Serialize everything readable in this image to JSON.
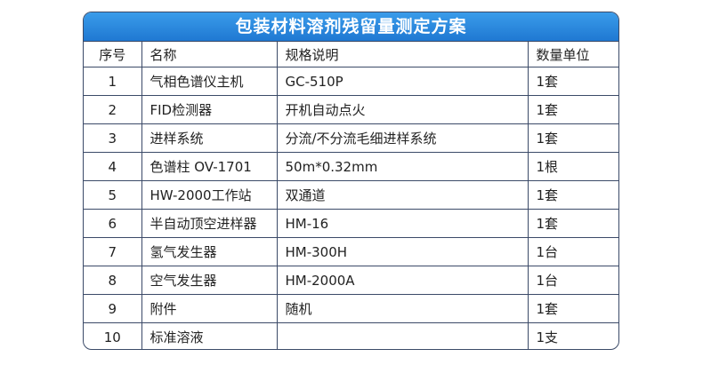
{
  "title": "包装材料溶剂残留量测定方案",
  "headers": [
    "序号",
    "名称",
    "规格说明",
    "数量单位"
  ],
  "rows": [
    [
      "1",
      "气相色谱仪主机",
      "GC-510P",
      "1套"
    ],
    [
      "2",
      "FID检测器",
      "开机自动点火",
      "1套"
    ],
    [
      "3",
      "进样系统",
      "分流/不分流毛细进样系统",
      "1套"
    ],
    [
      "4",
      "色谱柱 OV-1701",
      "50m*0.32mm",
      "1根"
    ],
    [
      "5",
      "HW-2000工作站",
      "双通道",
      "1套"
    ],
    [
      "6",
      "半自动顶空进样器",
      "HM-16",
      "1套"
    ],
    [
      "7",
      "氢气发生器",
      "HM-300H",
      "1台"
    ],
    [
      "8",
      "空气发生器",
      "HM-2000A",
      "1台"
    ],
    [
      "9",
      "附件",
      "随机",
      "1套"
    ],
    [
      "10",
      "标准溶液",
      "",
      "1支"
    ]
  ],
  "colors": {
    "title_bar": "#2a88dc",
    "border": "#3b4a68"
  }
}
